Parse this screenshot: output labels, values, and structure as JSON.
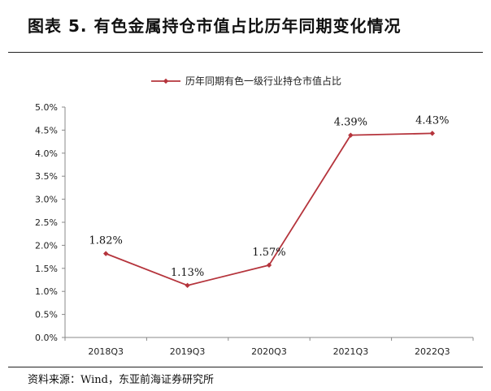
{
  "figure": {
    "title": "图表 5.   有色金属持仓市值占比历年同期变化情况",
    "source": "资料来源：Wind，东亚前海证券研究所"
  },
  "chart_data": {
    "type": "line",
    "categories": [
      "2018Q3",
      "2019Q3",
      "2020Q3",
      "2021Q3",
      "2022Q3"
    ],
    "series": [
      {
        "name": "历年同期有色一级行业持仓市值占比",
        "values": [
          1.82,
          1.13,
          1.57,
          4.39,
          4.43
        ],
        "data_labels": [
          "1.82%",
          "1.13%",
          "1.57%",
          "4.39%",
          "4.43%"
        ],
        "color": "#b5343c"
      }
    ],
    "ylim": [
      0,
      5
    ],
    "yticks": [
      "0.0%",
      "0.5%",
      "1.0%",
      "1.5%",
      "2.0%",
      "2.5%",
      "3.0%",
      "3.5%",
      "4.0%",
      "4.5%",
      "5.0%"
    ],
    "ytick_values": [
      0,
      0.5,
      1,
      1.5,
      2,
      2.5,
      3,
      3.5,
      4,
      4.5,
      5
    ],
    "legend_position": "top-center",
    "grid": false,
    "axis_color": "#888888"
  }
}
